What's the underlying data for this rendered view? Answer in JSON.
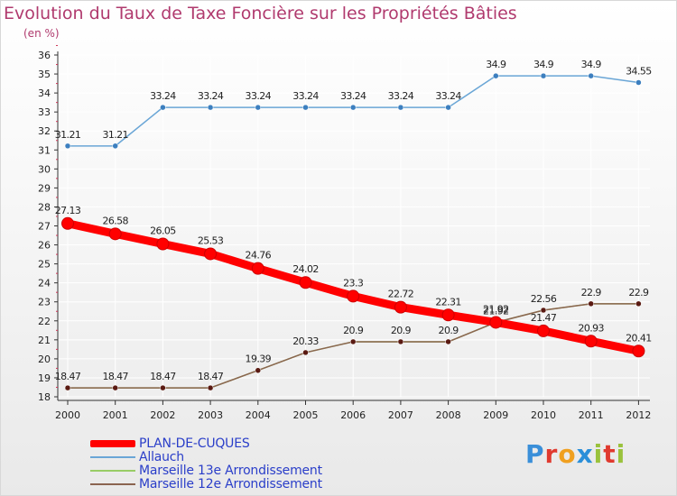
{
  "title": "Evolution du Taux de Taxe Foncière sur les Propriétés Bâties",
  "subtitle": "(en %)",
  "logo_text": "Proxiti",
  "colors": {
    "title": "#b03a6e",
    "legend_text": "#2a3ec9",
    "axis": "#333333",
    "grid": "#ffffff"
  },
  "chart_data": {
    "type": "line",
    "x": [
      2000,
      2001,
      2002,
      2003,
      2004,
      2005,
      2006,
      2007,
      2008,
      2009,
      2010,
      2011,
      2012
    ],
    "ylim": [
      18,
      36
    ],
    "y_ticks": [
      18,
      19,
      20,
      21,
      22,
      23,
      24,
      25,
      26,
      27,
      28,
      29,
      30,
      31,
      32,
      33,
      34,
      35,
      36
    ],
    "series": [
      {
        "name": "PLAN-DE-CUQUES",
        "color": "#ff0000",
        "marker_color": "#ff0000",
        "values": [
          27.13,
          26.58,
          26.05,
          25.53,
          24.76,
          24.02,
          23.3,
          22.72,
          22.31,
          21.92,
          21.47,
          20.93,
          20.41
        ],
        "labels": [
          "27.13",
          "26.58",
          "26.05",
          "25.53",
          "24.76",
          "24.02",
          "23.3",
          "22.72",
          "22.31",
          "21.92",
          "21.47",
          "20.93",
          "20.41"
        ],
        "thick": true
      },
      {
        "name": "Allauch",
        "color": "#6aa6d6",
        "marker_color": "#3c7fbf",
        "values": [
          31.21,
          31.21,
          33.24,
          33.24,
          33.24,
          33.24,
          33.24,
          33.24,
          33.24,
          34.9,
          34.9,
          34.9,
          34.55
        ],
        "labels": [
          "31.21",
          "31.21",
          "33.24",
          "33.24",
          "33.24",
          "33.24",
          "33.24",
          "33.24",
          "33.24",
          "34.9",
          "34.9",
          "34.9",
          "34.55"
        ],
        "thick": false
      },
      {
        "name": "Marseille 13e  Arrondissement",
        "color": "#99cc66",
        "marker_color": "#99cc66",
        "values": [
          18.47,
          18.47,
          18.47,
          18.47,
          19.39,
          20.33,
          20.9,
          20.9,
          20.9,
          21.92,
          22.56,
          22.9,
          22.9
        ],
        "labels": [],
        "thick": false
      },
      {
        "name": "Marseille 12e  Arrondissement",
        "color": "#8b6450",
        "marker_color": "#5a1a12",
        "values": [
          18.47,
          18.47,
          18.47,
          18.47,
          19.39,
          20.33,
          20.9,
          20.9,
          20.9,
          21.92,
          22.56,
          22.9,
          22.9
        ],
        "labels": [
          "18.47",
          "18.47",
          "18.47",
          "18.47",
          "19.39",
          "20.33",
          "20.9",
          "20.9",
          "20.9",
          "21.92",
          "22.56",
          "22.9",
          "22.9"
        ],
        "thick": false
      }
    ]
  }
}
